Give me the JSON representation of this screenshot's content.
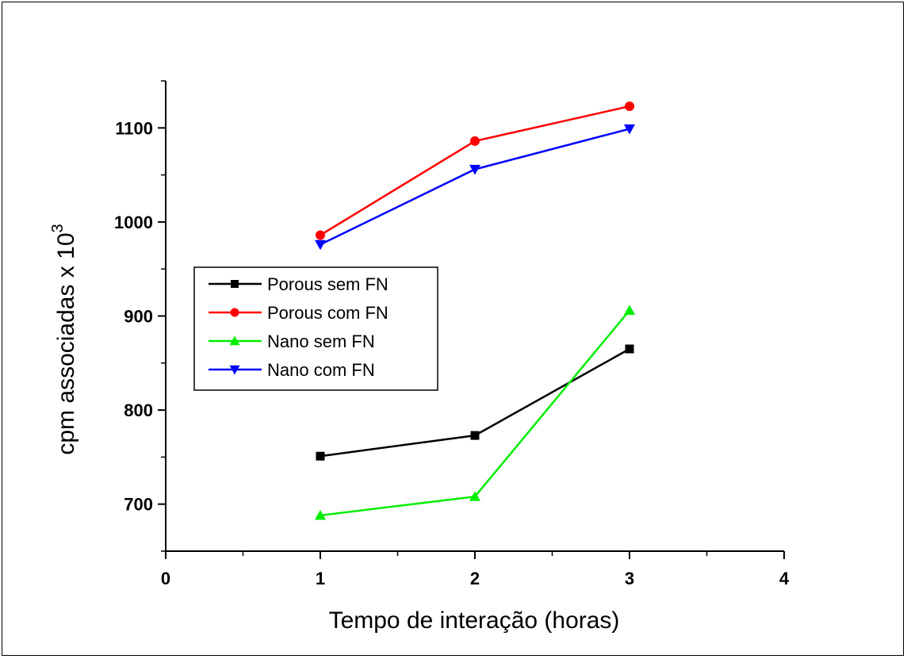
{
  "chart_data": {
    "type": "line",
    "xlabel": "Tempo de interação (horas)",
    "ylabel": "cpm  associadas x 10",
    "ylabel_superscript": "3",
    "xlim": [
      0,
      4
    ],
    "ylim": [
      650,
      1150
    ],
    "x_ticks": [
      0,
      1,
      2,
      3,
      4
    ],
    "y_ticks": [
      700,
      800,
      900,
      1000,
      1100
    ],
    "x": [
      1,
      2,
      3
    ],
    "series": [
      {
        "name": "Porous sem FN",
        "values": [
          751,
          773,
          865
        ],
        "color": "#000000",
        "marker": "square"
      },
      {
        "name": "Porous com FN",
        "values": [
          986,
          1086,
          1123
        ],
        "color": "#ff0000",
        "marker": "circle"
      },
      {
        "name": "Nano sem FN",
        "values": [
          688,
          708,
          906
        ],
        "color": "#00ee00",
        "marker": "triangle-up"
      },
      {
        "name": "Nano com FN",
        "values": [
          976,
          1056,
          1099
        ],
        "color": "#0000ff",
        "marker": "triangle-down"
      }
    ],
    "legend_position": "middle-left",
    "grid": false
  }
}
